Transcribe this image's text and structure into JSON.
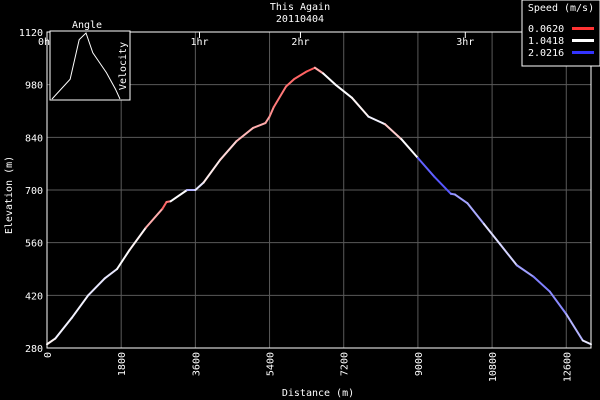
{
  "chart_data": {
    "type": "line",
    "title": "This Again",
    "subtitle": "20110404",
    "xlabel": "Distance (m)",
    "ylabel": "Elevation (m)",
    "xlim": [
      0,
      13200
    ],
    "ylim": [
      280,
      1120
    ],
    "x_ticks": [
      0,
      1800,
      3600,
      5400,
      7200,
      9000,
      10800,
      12600
    ],
    "y_ticks": [
      280,
      420,
      560,
      700,
      840,
      980,
      1120
    ],
    "top_axis_ticks": [
      {
        "label": "0hr",
        "x": 0
      },
      {
        "label": "1hr",
        "x": 3700
      },
      {
        "label": "2hr",
        "x": 6150
      },
      {
        "label": "3hr",
        "x": 10150
      }
    ],
    "grid": true,
    "legend": {
      "title": "Speed (m/s)",
      "position": "top-right",
      "items": [
        {
          "label": "0.0620",
          "color": "#ff3333"
        },
        {
          "label": "1.0418",
          "color": "#ffffff"
        },
        {
          "label": "2.0216",
          "color": "#3333ff"
        }
      ]
    },
    "series": [
      {
        "x": [
          0,
          200,
          600,
          1000,
          1400,
          1700,
          2000,
          2400,
          2800,
          2900,
          3000,
          3400,
          3600,
          3800,
          4200,
          4600,
          5000,
          5300,
          5400,
          5500,
          5800,
          6000,
          6300,
          6500,
          6700,
          7000,
          7400,
          7800,
          8200,
          8600,
          9000,
          9400,
          9800,
          9900,
          10200,
          10600,
          11000,
          11400,
          11800,
          12200,
          12600,
          13000,
          13200
        ],
        "y": [
          290,
          305,
          360,
          420,
          465,
          490,
          540,
          600,
          650,
          668,
          670,
          700,
          700,
          720,
          780,
          830,
          865,
          878,
          895,
          920,
          975,
          995,
          1015,
          1025,
          1010,
          980,
          945,
          895,
          875,
          835,
          785,
          735,
          690,
          688,
          665,
          610,
          555,
          500,
          470,
          430,
          370,
          300,
          290
        ],
        "speed": [
          1.0,
          1.0,
          1.2,
          1.0,
          1.3,
          1.0,
          1.1,
          0.9,
          0.4,
          0.2,
          0.6,
          1.5,
          1.3,
          1.0,
          0.9,
          0.8,
          0.6,
          0.7,
          0.5,
          0.5,
          0.3,
          0.4,
          0.2,
          0.3,
          1.0,
          1.1,
          1.0,
          1.0,
          1.2,
          0.4,
          1.7,
          1.9,
          1.8,
          1.4,
          1.6,
          1.3,
          1.1,
          1.4,
          1.6,
          1.7,
          1.5,
          1.3,
          1.0
        ]
      }
    ],
    "inset": {
      "title": "Angle",
      "label": "Velocity",
      "x": [
        0,
        0.8,
        1.2,
        1.5,
        1.8,
        2.0,
        2.4,
        2.8,
        3.0
      ],
      "y": [
        0,
        0.3,
        0.9,
        1.0,
        0.7,
        0.6,
        0.4,
        0.15,
        0
      ]
    }
  }
}
